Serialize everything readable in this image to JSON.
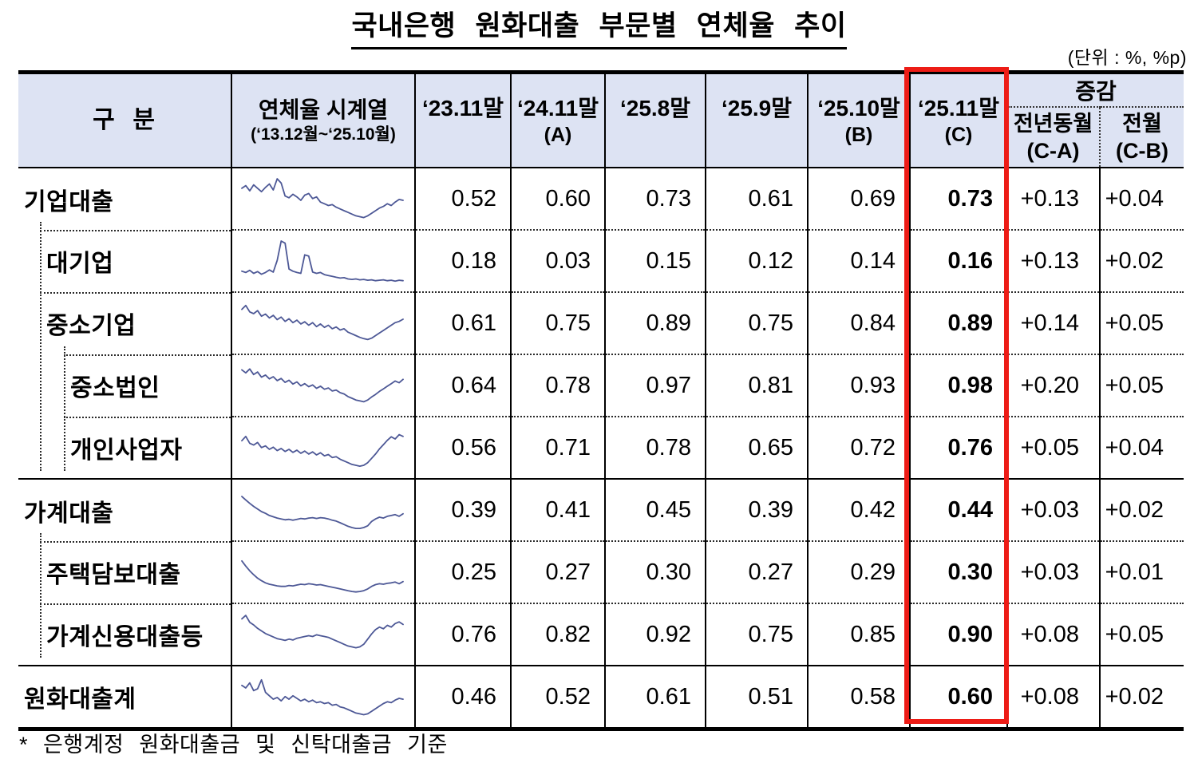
{
  "page": {
    "title": "국내은행 원화대출 부문별 연체율 추이",
    "unit_note": "(단위 : %, %p)",
    "footnote": "* 은행계정 원화대출금 및 신탁대출금 기준"
  },
  "header": {
    "category": "구  분",
    "series_label": "연체율 시계열",
    "series_sublabel": "(‘13.12월~‘25.10월)",
    "periods": [
      {
        "label": "‘23.11말",
        "sub": ""
      },
      {
        "label": "‘24.11말",
        "sub": "(A)"
      },
      {
        "label": "‘25.8말",
        "sub": ""
      },
      {
        "label": "‘25.9말",
        "sub": ""
      },
      {
        "label": "‘25.10말",
        "sub": "(B)"
      },
      {
        "label": "‘25.11말",
        "sub": "(C)"
      }
    ],
    "change_group": "증감",
    "change_columns": [
      {
        "label": "전년동월",
        "sub": "(C-A)"
      },
      {
        "label": "전월",
        "sub": "(C-B)"
      }
    ]
  },
  "highlight": {
    "column_label": "‘25.11말 (C)"
  },
  "colors": {
    "header_bg": "#dde3f3",
    "sparkline": "#4d5896",
    "highlight_box": "#ed1c16",
    "border": "#000000",
    "text": "#000000"
  },
  "chart_data": {
    "type": "table",
    "title": "국내은행 원화대출 부문별 연체율 추이",
    "unit": "%, %p",
    "columns": [
      "구분",
      "연체율 시계열(‘13.12월~‘25.10월)",
      "‘23.11말",
      "‘24.11말(A)",
      "‘25.8말",
      "‘25.9말",
      "‘25.10말(B)",
      "‘25.11말(C)",
      "전년동월(C-A)",
      "전월(C-B)"
    ],
    "rows": [
      {
        "key": "corporate-loans",
        "label": "기업대출",
        "level": 0,
        "sep": "none",
        "sep_indent": 0,
        "values": [
          "0.52",
          "0.60",
          "0.73",
          "0.61",
          "0.69",
          "0.73",
          "+0.13",
          "+0.04"
        ],
        "sparkline": [
          0.78,
          0.84,
          0.72,
          0.86,
          0.78,
          0.7,
          0.8,
          0.88,
          0.74,
          1.0,
          0.9,
          0.6,
          0.56,
          0.64,
          0.58,
          0.5,
          0.62,
          0.66,
          0.54,
          0.58,
          0.46,
          0.42,
          0.38,
          0.4,
          0.34,
          0.3,
          0.26,
          0.22,
          0.18,
          0.14,
          0.12,
          0.1,
          0.14,
          0.2,
          0.26,
          0.32,
          0.36,
          0.42,
          0.38,
          0.46,
          0.52,
          0.5
        ]
      },
      {
        "key": "large-corporations",
        "label": "대기업",
        "level": 1,
        "sep": "dotted",
        "sep_indent": 1,
        "values": [
          "0.18",
          "0.03",
          "0.15",
          "0.12",
          "0.14",
          "0.16",
          "+0.13",
          "+0.02"
        ],
        "sparkline": [
          0.3,
          0.27,
          0.32,
          0.25,
          0.29,
          0.23,
          0.27,
          0.33,
          0.28,
          0.55,
          1.0,
          0.95,
          0.35,
          0.3,
          0.27,
          0.25,
          0.68,
          0.65,
          0.28,
          0.25,
          0.27,
          0.22,
          0.2,
          0.18,
          0.16,
          0.14,
          0.15,
          0.12,
          0.11,
          0.12,
          0.1,
          0.11,
          0.09,
          0.1,
          0.08,
          0.09,
          0.1,
          0.08,
          0.09,
          0.07,
          0.09,
          0.08
        ]
      },
      {
        "key": "smes",
        "label": "중소기업",
        "level": 1,
        "sep": "dotted",
        "sep_indent": 1,
        "values": [
          "0.61",
          "0.75",
          "0.89",
          "0.75",
          "0.84",
          "0.89",
          "+0.14",
          "+0.05"
        ],
        "sparkline": [
          0.86,
          0.95,
          0.8,
          0.76,
          0.83,
          0.7,
          0.75,
          0.66,
          0.72,
          0.62,
          0.68,
          0.58,
          0.64,
          0.55,
          0.61,
          0.52,
          0.57,
          0.49,
          0.55,
          0.46,
          0.52,
          0.44,
          0.49,
          0.41,
          0.45,
          0.38,
          0.41,
          0.33,
          0.29,
          0.25,
          0.21,
          0.18,
          0.16,
          0.19,
          0.25,
          0.31,
          0.37,
          0.43,
          0.49,
          0.55,
          0.58,
          0.63
        ]
      },
      {
        "key": "sme-corporations",
        "label": "중소법인",
        "level": 2,
        "sep": "dotted",
        "sep_indent": 2,
        "values": [
          "0.64",
          "0.78",
          "0.97",
          "0.81",
          "0.93",
          "0.98",
          "+0.20",
          "+0.05"
        ],
        "sparkline": [
          0.9,
          0.83,
          0.92,
          0.79,
          0.85,
          0.73,
          0.78,
          0.69,
          0.74,
          0.65,
          0.7,
          0.61,
          0.66,
          0.57,
          0.62,
          0.53,
          0.58,
          0.51,
          0.55,
          0.47,
          0.52,
          0.45,
          0.48,
          0.41,
          0.43,
          0.37,
          0.34,
          0.28,
          0.24,
          0.2,
          0.18,
          0.16,
          0.2,
          0.27,
          0.33,
          0.4,
          0.46,
          0.52,
          0.58,
          0.64,
          0.6,
          0.68
        ]
      },
      {
        "key": "sole-proprietors",
        "label": "개인사업자",
        "level": 2,
        "sep": "dotted",
        "sep_indent": 2,
        "values": [
          "0.56",
          "0.71",
          "0.78",
          "0.65",
          "0.72",
          "0.76",
          "+0.05",
          "+0.04"
        ],
        "sparkline": [
          0.7,
          0.8,
          0.64,
          0.6,
          0.66,
          0.54,
          0.58,
          0.5,
          0.55,
          0.47,
          0.52,
          0.45,
          0.5,
          0.43,
          0.48,
          0.41,
          0.46,
          0.39,
          0.44,
          0.37,
          0.42,
          0.35,
          0.38,
          0.31,
          0.33,
          0.27,
          0.23,
          0.19,
          0.15,
          0.13,
          0.11,
          0.13,
          0.19,
          0.29,
          0.39,
          0.51,
          0.61,
          0.71,
          0.79,
          0.74,
          0.84,
          0.8
        ]
      },
      {
        "key": "household-loans",
        "label": "가계대출",
        "level": 0,
        "sep": "solid",
        "sep_indent": 0,
        "values": [
          "0.39",
          "0.41",
          "0.45",
          "0.39",
          "0.42",
          "0.44",
          "+0.03",
          "+0.02"
        ],
        "sparkline": [
          0.85,
          0.77,
          0.69,
          0.62,
          0.56,
          0.5,
          0.46,
          0.41,
          0.38,
          0.35,
          0.33,
          0.31,
          0.32,
          0.3,
          0.32,
          0.34,
          0.33,
          0.35,
          0.36,
          0.34,
          0.36,
          0.35,
          0.33,
          0.3,
          0.28,
          0.24,
          0.2,
          0.16,
          0.13,
          0.11,
          0.11,
          0.13,
          0.17,
          0.27,
          0.33,
          0.37,
          0.35,
          0.39,
          0.41,
          0.43,
          0.39,
          0.45
        ]
      },
      {
        "key": "mortgage-loans",
        "label": "주택담보대출",
        "level": 1,
        "sep": "dotted",
        "sep_indent": 1,
        "values": [
          "0.25",
          "0.27",
          "0.30",
          "0.27",
          "0.29",
          "0.30",
          "+0.03",
          "+0.01"
        ],
        "sparkline": [
          0.8,
          0.68,
          0.57,
          0.48,
          0.4,
          0.34,
          0.29,
          0.26,
          0.24,
          0.22,
          0.21,
          0.21,
          0.23,
          0.22,
          0.24,
          0.26,
          0.25,
          0.27,
          0.26,
          0.24,
          0.25,
          0.23,
          0.21,
          0.19,
          0.17,
          0.15,
          0.13,
          0.11,
          0.09,
          0.08,
          0.09,
          0.11,
          0.15,
          0.21,
          0.25,
          0.27,
          0.26,
          0.28,
          0.29,
          0.31,
          0.27,
          0.32
        ]
      },
      {
        "key": "household-credit-etc",
        "label": "가계신용대출등",
        "level": 1,
        "sep": "dotted",
        "sep_indent": 1,
        "values": [
          "0.76",
          "0.82",
          "0.92",
          "0.75",
          "0.85",
          "0.90",
          "+0.08",
          "+0.05"
        ],
        "sparkline": [
          0.9,
          0.98,
          0.82,
          0.76,
          0.68,
          0.62,
          0.56,
          0.52,
          0.48,
          0.44,
          0.42,
          0.4,
          0.43,
          0.41,
          0.45,
          0.47,
          0.49,
          0.51,
          0.49,
          0.53,
          0.51,
          0.49,
          0.47,
          0.43,
          0.39,
          0.35,
          0.31,
          0.27,
          0.25,
          0.23,
          0.25,
          0.31,
          0.43,
          0.55,
          0.65,
          0.71,
          0.67,
          0.75,
          0.71,
          0.79,
          0.83,
          0.77
        ]
      },
      {
        "key": "total-won-loans",
        "label": "원화대출계",
        "level": 0,
        "sep": "solid",
        "sep_indent": 0,
        "values": [
          "0.46",
          "0.52",
          "0.61",
          "0.51",
          "0.58",
          "0.60",
          "+0.08",
          "+0.02"
        ],
        "sparkline": [
          0.8,
          0.74,
          0.86,
          0.68,
          0.72,
          0.93,
          0.64,
          0.56,
          0.48,
          0.52,
          0.44,
          0.54,
          0.48,
          0.56,
          0.5,
          0.44,
          0.48,
          0.42,
          0.46,
          0.4,
          0.42,
          0.38,
          0.4,
          0.34,
          0.36,
          0.3,
          0.28,
          0.24,
          0.2,
          0.16,
          0.14,
          0.12,
          0.14,
          0.2,
          0.26,
          0.32,
          0.38,
          0.42,
          0.4,
          0.46,
          0.5,
          0.48
        ]
      }
    ]
  }
}
